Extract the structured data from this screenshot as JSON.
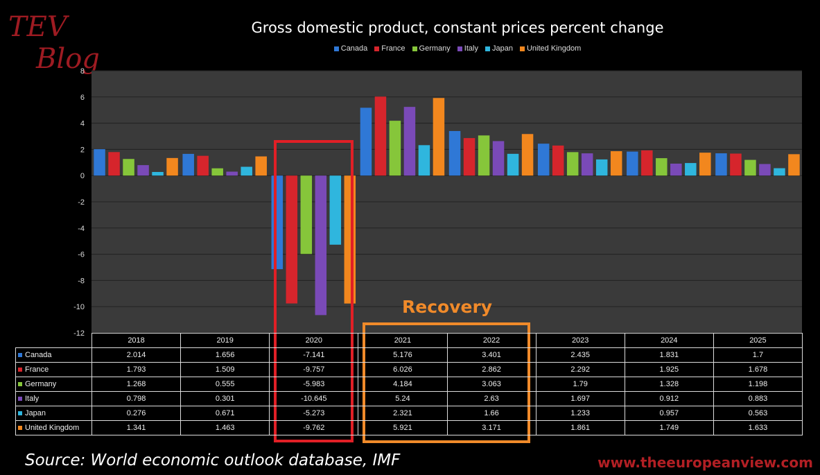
{
  "logo": {
    "line1": "TEV",
    "line2": "Blog"
  },
  "source_text": "Source: World economic outlook database, IMF",
  "website": "www.theeuropeanview.com",
  "annotation": "Recovery",
  "colors": {
    "Canada": "#2f78d6",
    "France": "#d6252c",
    "Germany": "#86c63a",
    "Italy": "#7a4ab8",
    "Japan": "#2fb6de",
    "United Kingdom": "#f2871e",
    "plot_bg": "#3a3a3a",
    "highlight_2020": "#e11f26",
    "highlight_recovery": "#f08a2a",
    "logo": "#9e1b22"
  },
  "chart_data": {
    "type": "bar",
    "title": "Gross domestic product, constant prices percent change",
    "categories": [
      "2018",
      "2019",
      "2020",
      "2021",
      "2022",
      "2023",
      "2024",
      "2025"
    ],
    "ylim": [
      -12,
      8
    ],
    "yticks": [
      "8",
      "6",
      "4",
      "2",
      "0",
      "-2",
      "-4",
      "-6",
      "-8",
      "-10",
      "-12"
    ],
    "grid": true,
    "legend_position": "top",
    "series": [
      {
        "name": "Canada",
        "values": [
          2.014,
          1.656,
          -7.141,
          5.176,
          3.401,
          2.435,
          1.831,
          1.7
        ]
      },
      {
        "name": "France",
        "values": [
          1.793,
          1.509,
          -9.757,
          6.026,
          2.862,
          2.292,
          1.925,
          1.678
        ]
      },
      {
        "name": "Germany",
        "values": [
          1.268,
          0.555,
          -5.983,
          4.184,
          3.063,
          1.79,
          1.328,
          1.198
        ]
      },
      {
        "name": "Italy",
        "values": [
          0.798,
          0.301,
          -10.645,
          5.24,
          2.63,
          1.697,
          0.912,
          0.883
        ]
      },
      {
        "name": "Japan",
        "values": [
          0.276,
          0.671,
          -5.273,
          2.321,
          1.66,
          1.233,
          0.957,
          0.563
        ]
      },
      {
        "name": "United Kingdom",
        "values": [
          1.341,
          1.463,
          -9.762,
          5.921,
          3.171,
          1.861,
          1.749,
          1.633
        ]
      }
    ]
  }
}
